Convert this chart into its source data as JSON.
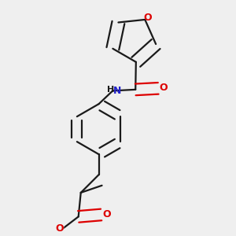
{
  "bg_color": "#efefef",
  "bond_color": "#1a1a1a",
  "o_color": "#dd0000",
  "n_color": "#2222cc",
  "line_width": 1.6,
  "dbo": 0.012,
  "font_size": 8.5,
  "fig_size": [
    3.0,
    3.0
  ],
  "dpi": 100,
  "xlim": [
    0.15,
    0.85
  ],
  "ylim": [
    0.05,
    1.0
  ]
}
